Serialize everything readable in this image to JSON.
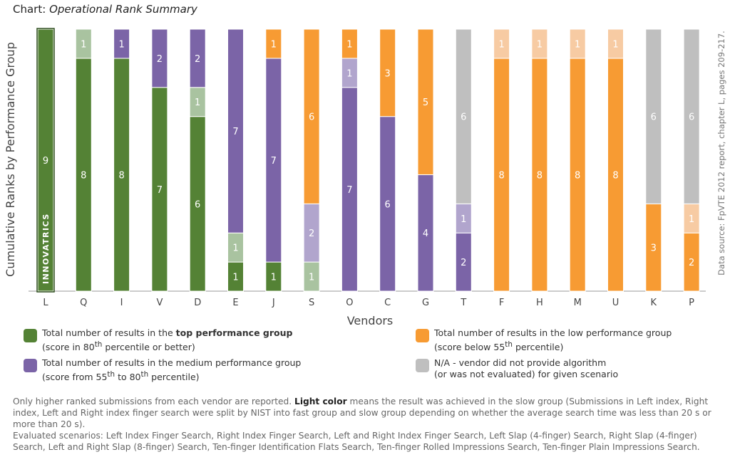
{
  "title": {
    "prefix": "Chart:",
    "name": "Operational Rank Summary"
  },
  "source_note": "Data source: FpVTE 2012 report, chapter L, pages 209-217.",
  "chart_data": {
    "type": "bar",
    "stacked": true,
    "xlabel": "Vendors",
    "ylabel": "Cumulative Ranks by Performance Group",
    "ylim": [
      0,
      9
    ],
    "grid": false,
    "highlight": {
      "category": "L",
      "label": "INNOVATRICS"
    },
    "categories": [
      "L",
      "Q",
      "I",
      "V",
      "D",
      "E",
      "J",
      "S",
      "O",
      "C",
      "G",
      "T",
      "F",
      "H",
      "M",
      "U",
      "K",
      "P"
    ],
    "colors": {
      "top": "#548235",
      "top_light": "#a9c3a0",
      "medium": "#7b64a7",
      "medium_light": "#b1a5cd",
      "low": "#f79b33",
      "low_light": "#f7cba3",
      "na": "#bfbfbf"
    },
    "stacks": [
      [
        {
          "g": "top",
          "v": 9
        }
      ],
      [
        {
          "g": "top",
          "v": 8
        },
        {
          "g": "top_light",
          "v": 1
        }
      ],
      [
        {
          "g": "top",
          "v": 8
        },
        {
          "g": "medium",
          "v": 1
        }
      ],
      [
        {
          "g": "top",
          "v": 7
        },
        {
          "g": "medium",
          "v": 2
        }
      ],
      [
        {
          "g": "top",
          "v": 6
        },
        {
          "g": "top_light",
          "v": 1
        },
        {
          "g": "medium",
          "v": 2
        }
      ],
      [
        {
          "g": "top",
          "v": 1
        },
        {
          "g": "top_light",
          "v": 1
        },
        {
          "g": "medium",
          "v": 7
        }
      ],
      [
        {
          "g": "top",
          "v": 1
        },
        {
          "g": "medium",
          "v": 7
        },
        {
          "g": "low",
          "v": 1
        }
      ],
      [
        {
          "g": "top_light",
          "v": 1
        },
        {
          "g": "medium_light",
          "v": 2
        },
        {
          "g": "low",
          "v": 6
        }
      ],
      [
        {
          "g": "medium",
          "v": 7
        },
        {
          "g": "medium_light",
          "v": 1
        },
        {
          "g": "low",
          "v": 1
        }
      ],
      [
        {
          "g": "medium",
          "v": 6
        },
        {
          "g": "low",
          "v": 3
        }
      ],
      [
        {
          "g": "medium",
          "v": 4
        },
        {
          "g": "low",
          "v": 5
        }
      ],
      [
        {
          "g": "medium",
          "v": 2
        },
        {
          "g": "medium_light",
          "v": 1
        },
        {
          "g": "na",
          "v": 6
        }
      ],
      [
        {
          "g": "low",
          "v": 8
        },
        {
          "g": "low_light",
          "v": 1
        }
      ],
      [
        {
          "g": "low",
          "v": 8
        },
        {
          "g": "low_light",
          "v": 1
        }
      ],
      [
        {
          "g": "low",
          "v": 8
        },
        {
          "g": "low_light",
          "v": 1
        }
      ],
      [
        {
          "g": "low",
          "v": 8
        },
        {
          "g": "low_light",
          "v": 1
        }
      ],
      [
        {
          "g": "low",
          "v": 3
        },
        {
          "g": "na",
          "v": 6
        }
      ],
      [
        {
          "g": "low",
          "v": 2
        },
        {
          "g": "low_light",
          "v": 1
        },
        {
          "g": "na",
          "v": 6
        }
      ]
    ]
  },
  "legend": {
    "top": {
      "pre": "Total number of results in the ",
      "bold": "top performance group",
      "sub_pre": "(score in 80",
      "sub_sup": "th",
      "sub_post": " percentile or better)"
    },
    "medium": {
      "main": "Total number of results in the medium performance group",
      "sub_pre": "(score from 55",
      "sub_sup": "th",
      "sub_mid": " to 80",
      "sub_sup2": "th",
      "sub_post": " percentile)"
    },
    "low": {
      "main": "Total number of results in the low performance group",
      "sub_pre": "(score below 55",
      "sub_sup": "th",
      "sub_post": " percentile)"
    },
    "na": {
      "main": "N/A - vendor did not provide algorithm",
      "sub": "(or was not evaluated) for given scenario"
    }
  },
  "notes": {
    "p1_pre": "Only higher ranked submissions from each vendor are reported. ",
    "p1_bold": "Light color",
    "p1_post": " means the result was achieved in the slow group (Submissions in Left index, Right index, Left and Right index finger search were split by NIST into fast group and slow group depending on whether the average search time was less than 20 s or more than 20 s).",
    "p2": "Evaluated scenarios: Left Index Finger Search, Right Index Finger Search, Left and Right Index Finger Search, Left Slap (4-finger) Search, Right Slap (4-finger) Search, Left and Right Slap (8-finger) Search, Ten-finger Identification Flats Search, Ten-finger Rolled Impressions Search, Ten-finger Plain Impressions Search."
  }
}
